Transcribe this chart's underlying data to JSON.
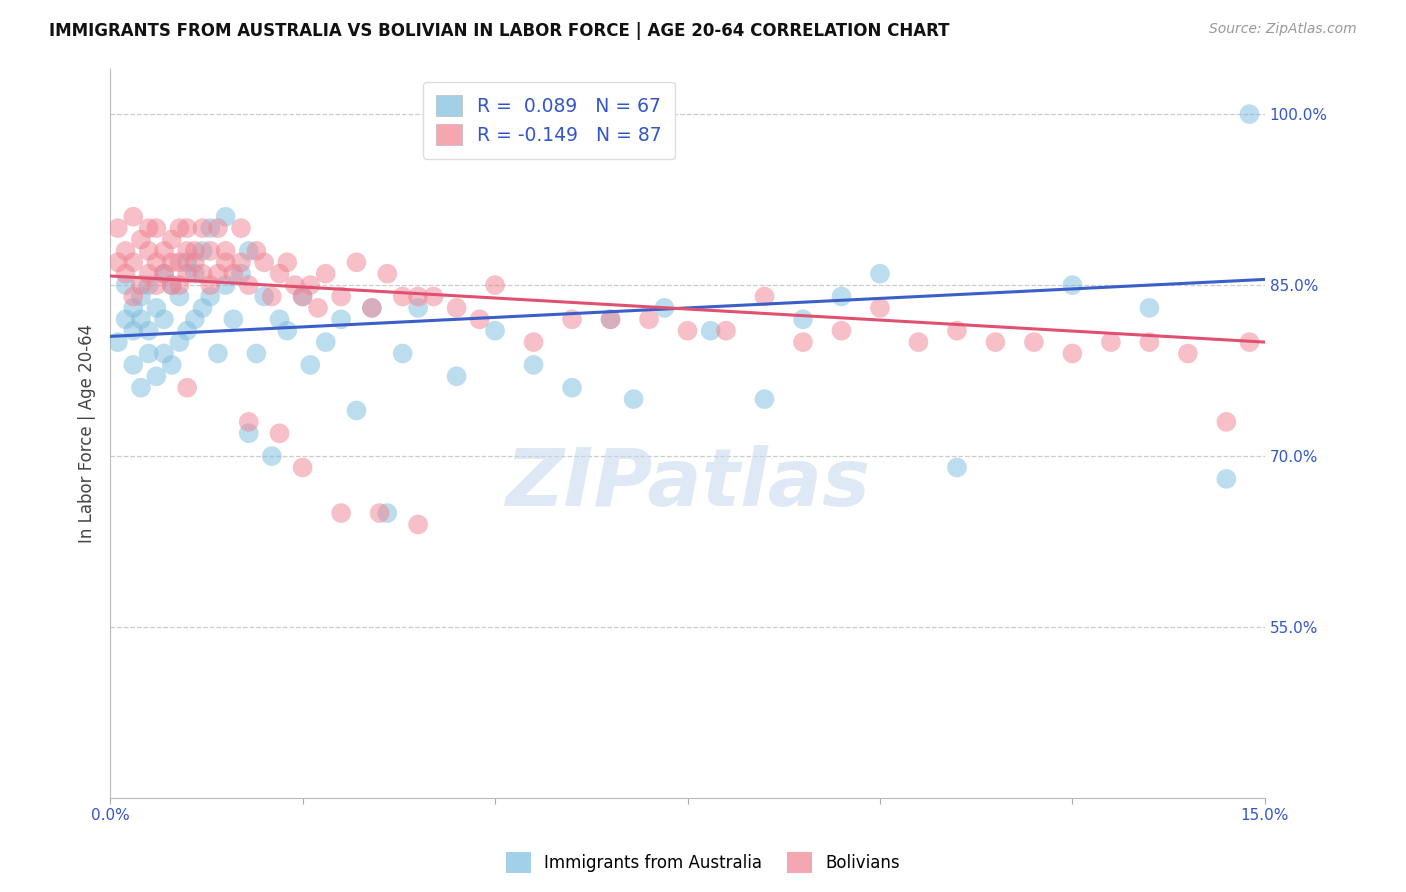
{
  "title": "IMMIGRANTS FROM AUSTRALIA VS BOLIVIAN IN LABOR FORCE | AGE 20-64 CORRELATION CHART",
  "source": "Source: ZipAtlas.com",
  "ylabel": "In Labor Force | Age 20-64",
  "xlim": [
    0.0,
    0.15
  ],
  "ylim": [
    0.4,
    1.04
  ],
  "xtick_positions": [
    0.0,
    0.025,
    0.05,
    0.075,
    0.1,
    0.125,
    0.15
  ],
  "xtick_labels": [
    "0.0%",
    "",
    "",
    "",
    "",
    "",
    "15.0%"
  ],
  "yticks_right": [
    0.55,
    0.7,
    0.85,
    1.0
  ],
  "ytick_labels_right": [
    "55.0%",
    "70.0%",
    "85.0%",
    "100.0%"
  ],
  "australia_color": "#7bbcde",
  "bolivia_color": "#f08090",
  "trend_australia_color": "#3a5fc8",
  "trend_bolivia_color": "#e05070",
  "watermark": "ZIPatlas",
  "australia_R": 0.089,
  "australia_N": 67,
  "bolivia_R": -0.149,
  "bolivia_N": 87,
  "legend_label_aus": "R =  0.089   N = 67",
  "legend_label_bol": "R = -0.149   N = 87",
  "legend_text_color": "#3355cc",
  "bottom_legend_aus": "Immigrants from Australia",
  "bottom_legend_bol": "Bolivians",
  "aus_x": [
    0.001,
    0.002,
    0.002,
    0.003,
    0.003,
    0.003,
    0.004,
    0.004,
    0.004,
    0.005,
    0.005,
    0.005,
    0.006,
    0.006,
    0.007,
    0.007,
    0.007,
    0.008,
    0.008,
    0.009,
    0.009,
    0.01,
    0.01,
    0.011,
    0.011,
    0.012,
    0.012,
    0.013,
    0.013,
    0.014,
    0.015,
    0.015,
    0.016,
    0.017,
    0.018,
    0.018,
    0.019,
    0.02,
    0.021,
    0.022,
    0.023,
    0.025,
    0.026,
    0.028,
    0.03,
    0.032,
    0.034,
    0.036,
    0.038,
    0.04,
    0.045,
    0.05,
    0.055,
    0.06,
    0.065,
    0.068,
    0.072,
    0.078,
    0.085,
    0.09,
    0.095,
    0.1,
    0.11,
    0.125,
    0.135,
    0.145,
    0.148
  ],
  "aus_y": [
    0.8,
    0.82,
    0.85,
    0.78,
    0.81,
    0.83,
    0.76,
    0.82,
    0.84,
    0.79,
    0.81,
    0.85,
    0.77,
    0.83,
    0.79,
    0.82,
    0.86,
    0.78,
    0.85,
    0.8,
    0.84,
    0.81,
    0.87,
    0.82,
    0.86,
    0.83,
    0.88,
    0.84,
    0.9,
    0.79,
    0.85,
    0.91,
    0.82,
    0.86,
    0.72,
    0.88,
    0.79,
    0.84,
    0.7,
    0.82,
    0.81,
    0.84,
    0.78,
    0.8,
    0.82,
    0.74,
    0.83,
    0.65,
    0.79,
    0.83,
    0.77,
    0.81,
    0.78,
    0.76,
    0.82,
    0.75,
    0.83,
    0.81,
    0.75,
    0.82,
    0.84,
    0.86,
    0.69,
    0.85,
    0.83,
    0.68,
    1.0
  ],
  "bol_x": [
    0.001,
    0.001,
    0.002,
    0.002,
    0.003,
    0.003,
    0.003,
    0.004,
    0.004,
    0.005,
    0.005,
    0.005,
    0.006,
    0.006,
    0.006,
    0.007,
    0.007,
    0.008,
    0.008,
    0.008,
    0.009,
    0.009,
    0.009,
    0.01,
    0.01,
    0.01,
    0.011,
    0.011,
    0.012,
    0.012,
    0.013,
    0.013,
    0.014,
    0.014,
    0.015,
    0.015,
    0.016,
    0.017,
    0.017,
    0.018,
    0.019,
    0.02,
    0.021,
    0.022,
    0.023,
    0.024,
    0.025,
    0.026,
    0.027,
    0.028,
    0.03,
    0.032,
    0.034,
    0.036,
    0.038,
    0.04,
    0.042,
    0.045,
    0.048,
    0.05,
    0.055,
    0.06,
    0.065,
    0.07,
    0.075,
    0.08,
    0.085,
    0.09,
    0.095,
    0.1,
    0.105,
    0.11,
    0.115,
    0.12,
    0.125,
    0.13,
    0.135,
    0.14,
    0.145,
    0.148,
    0.01,
    0.018,
    0.022,
    0.025,
    0.03,
    0.035,
    0.04
  ],
  "bol_y": [
    0.87,
    0.9,
    0.86,
    0.88,
    0.84,
    0.87,
    0.91,
    0.85,
    0.89,
    0.86,
    0.88,
    0.9,
    0.85,
    0.87,
    0.9,
    0.86,
    0.88,
    0.85,
    0.87,
    0.89,
    0.85,
    0.87,
    0.9,
    0.86,
    0.88,
    0.9,
    0.87,
    0.88,
    0.86,
    0.9,
    0.85,
    0.88,
    0.86,
    0.9,
    0.87,
    0.88,
    0.86,
    0.87,
    0.9,
    0.85,
    0.88,
    0.87,
    0.84,
    0.86,
    0.87,
    0.85,
    0.84,
    0.85,
    0.83,
    0.86,
    0.84,
    0.87,
    0.83,
    0.86,
    0.84,
    0.84,
    0.84,
    0.83,
    0.82,
    0.85,
    0.8,
    0.82,
    0.82,
    0.82,
    0.81,
    0.81,
    0.84,
    0.8,
    0.81,
    0.83,
    0.8,
    0.81,
    0.8,
    0.8,
    0.79,
    0.8,
    0.8,
    0.79,
    0.73,
    0.8,
    0.76,
    0.73,
    0.72,
    0.69,
    0.65,
    0.65,
    0.64
  ]
}
